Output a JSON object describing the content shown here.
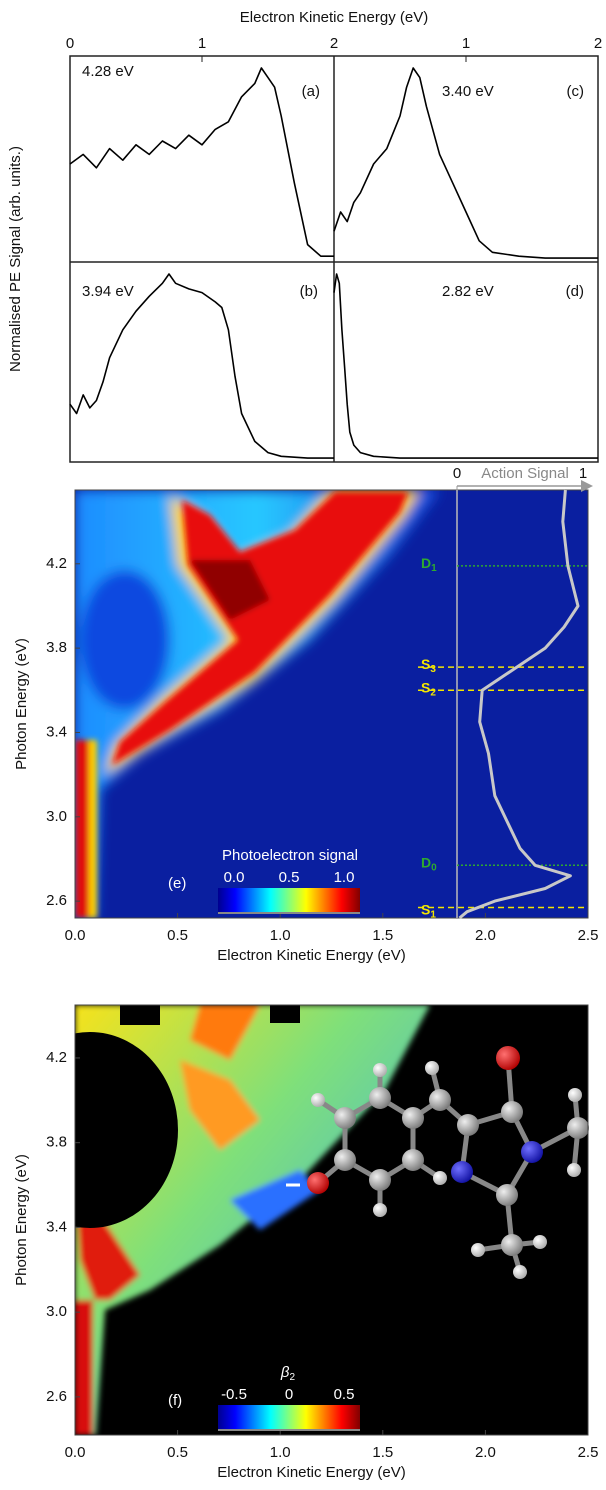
{
  "chart_data": [
    {
      "type": "line",
      "label": "(a)",
      "annotation": "4.28 eV",
      "xlabel": "Electron Kinetic Energy (eV)",
      "ylabel": "Normalised PE Signal (arb. units.)",
      "xlim": [
        0,
        2
      ],
      "xticks": [
        0,
        1,
        2
      ],
      "ylim": [
        0,
        1
      ],
      "color": "#000000",
      "x": [
        0,
        0.1,
        0.2,
        0.3,
        0.4,
        0.5,
        0.6,
        0.7,
        0.8,
        0.9,
        1.0,
        1.1,
        1.2,
        1.3,
        1.4,
        1.45,
        1.5,
        1.55,
        1.6,
        1.7,
        1.8,
        1.9,
        2.0
      ],
      "values": [
        0.5,
        0.55,
        0.48,
        0.58,
        0.52,
        0.6,
        0.55,
        0.62,
        0.58,
        0.65,
        0.6,
        0.68,
        0.72,
        0.85,
        0.92,
        1.0,
        0.95,
        0.9,
        0.75,
        0.4,
        0.08,
        0.02,
        0.02
      ]
    },
    {
      "type": "line",
      "label": "(b)",
      "annotation": "3.94 eV",
      "xlim": [
        0,
        2
      ],
      "ylim": [
        0,
        1
      ],
      "color": "#000000",
      "x": [
        0,
        0.05,
        0.1,
        0.15,
        0.2,
        0.25,
        0.3,
        0.4,
        0.5,
        0.6,
        0.7,
        0.75,
        0.8,
        0.9,
        1.0,
        1.1,
        1.15,
        1.2,
        1.25,
        1.3,
        1.4,
        1.5,
        1.6,
        1.8,
        2.0
      ],
      "values": [
        0.3,
        0.25,
        0.35,
        0.28,
        0.32,
        0.42,
        0.55,
        0.7,
        0.8,
        0.88,
        0.95,
        1.0,
        0.95,
        0.92,
        0.9,
        0.85,
        0.82,
        0.7,
        0.45,
        0.25,
        0.1,
        0.04,
        0.02,
        0.01,
        0.01
      ]
    },
    {
      "type": "line",
      "label": "(c)",
      "annotation": "3.40 eV",
      "xlim": [
        0,
        2
      ],
      "xticks": [
        1,
        2
      ],
      "ylim": [
        0,
        1
      ],
      "color": "#000000",
      "x": [
        0,
        0.05,
        0.1,
        0.15,
        0.2,
        0.3,
        0.4,
        0.5,
        0.55,
        0.6,
        0.65,
        0.7,
        0.8,
        0.9,
        1.0,
        1.1,
        1.2,
        1.4,
        1.6,
        2.0
      ],
      "values": [
        0.15,
        0.25,
        0.2,
        0.3,
        0.35,
        0.5,
        0.58,
        0.75,
        0.9,
        1.0,
        0.95,
        0.8,
        0.55,
        0.4,
        0.25,
        0.1,
        0.04,
        0.02,
        0.01,
        0.01
      ]
    },
    {
      "type": "line",
      "label": "(d)",
      "annotation": "2.82 eV",
      "xlim": [
        0,
        2
      ],
      "ylim": [
        0,
        1
      ],
      "color": "#000000",
      "x": [
        0,
        0.02,
        0.04,
        0.06,
        0.08,
        0.1,
        0.12,
        0.15,
        0.2,
        0.3,
        0.5,
        1.0,
        2.0
      ],
      "values": [
        0.9,
        1.0,
        0.95,
        0.7,
        0.5,
        0.3,
        0.15,
        0.08,
        0.04,
        0.02,
        0.01,
        0.01,
        0.01
      ]
    },
    {
      "type": "heatmap",
      "style": "signal",
      "label": "(e)",
      "xlabel": "Electron Kinetic Energy (eV)",
      "ylabel": "Photon Energy (eV)",
      "xlim": [
        0,
        2.5
      ],
      "xticks": [
        {
          "value": 0,
          "label": "0.0"
        },
        0.5,
        {
          "value": 1,
          "label": "1.0"
        },
        1.5,
        {
          "value": 2,
          "label": "2.0"
        },
        2.5
      ],
      "ylim": [
        2.52,
        4.55
      ],
      "yticks": [
        2.6,
        {
          "value": 3,
          "label": "3.0"
        },
        3.4,
        3.8,
        4.2
      ],
      "colorbar": {
        "title": "Photoelectron signal",
        "ticks": [
          {
            "value": 0,
            "label": "0.0"
          },
          0.5,
          {
            "value": 1,
            "label": "1.0"
          }
        ]
      },
      "action": {
        "title": "Action Signal",
        "xlim": [
          0,
          1
        ],
        "xticks": [
          0,
          1
        ],
        "color": "#c8c8c8",
        "y": [
          4.55,
          4.4,
          4.19,
          4.0,
          3.9,
          3.8,
          3.72,
          3.6,
          3.45,
          3.3,
          3.1,
          2.95,
          2.85,
          2.77,
          2.72,
          2.66,
          2.6,
          2.55,
          2.52
        ],
        "values": [
          0.86,
          0.84,
          0.88,
          0.96,
          0.85,
          0.7,
          0.5,
          0.2,
          0.18,
          0.25,
          0.3,
          0.42,
          0.5,
          0.62,
          0.9,
          0.7,
          0.3,
          0.08,
          0.02
        ]
      },
      "states": [
        {
          "letter": "D",
          "sub": "1",
          "value": 4.19,
          "color": "#2eaa2e"
        },
        {
          "letter": "S",
          "sub": "3",
          "value": 3.71,
          "color": "#f2e600"
        },
        {
          "letter": "S",
          "sub": "2",
          "value": 3.6,
          "color": "#f2e600"
        },
        {
          "letter": "D",
          "sub": "0",
          "value": 2.77,
          "color": "#2eaa2e"
        },
        {
          "letter": "S",
          "sub": "1",
          "value": 2.57,
          "color": "#f2e600"
        }
      ]
    },
    {
      "type": "heatmap",
      "style": "beta",
      "label": "(f)",
      "xlabel": "Electron Kinetic Energy (eV)",
      "ylabel": "Photon Energy (eV)",
      "xlim": [
        0,
        2.5
      ],
      "xticks": [
        {
          "value": 0,
          "label": "0.0"
        },
        0.5,
        {
          "value": 1,
          "label": "1.0"
        },
        1.5,
        {
          "value": 2,
          "label": "2.0"
        },
        2.5
      ],
      "ylim": [
        2.42,
        4.45
      ],
      "yticks": [
        2.6,
        {
          "value": 3,
          "label": "3.0"
        },
        3.4,
        3.8,
        4.2
      ],
      "colorbar": {
        "symbol": "β",
        "sub": "2",
        "ticks": [
          -0.5,
          0,
          0.5
        ]
      }
    }
  ]
}
